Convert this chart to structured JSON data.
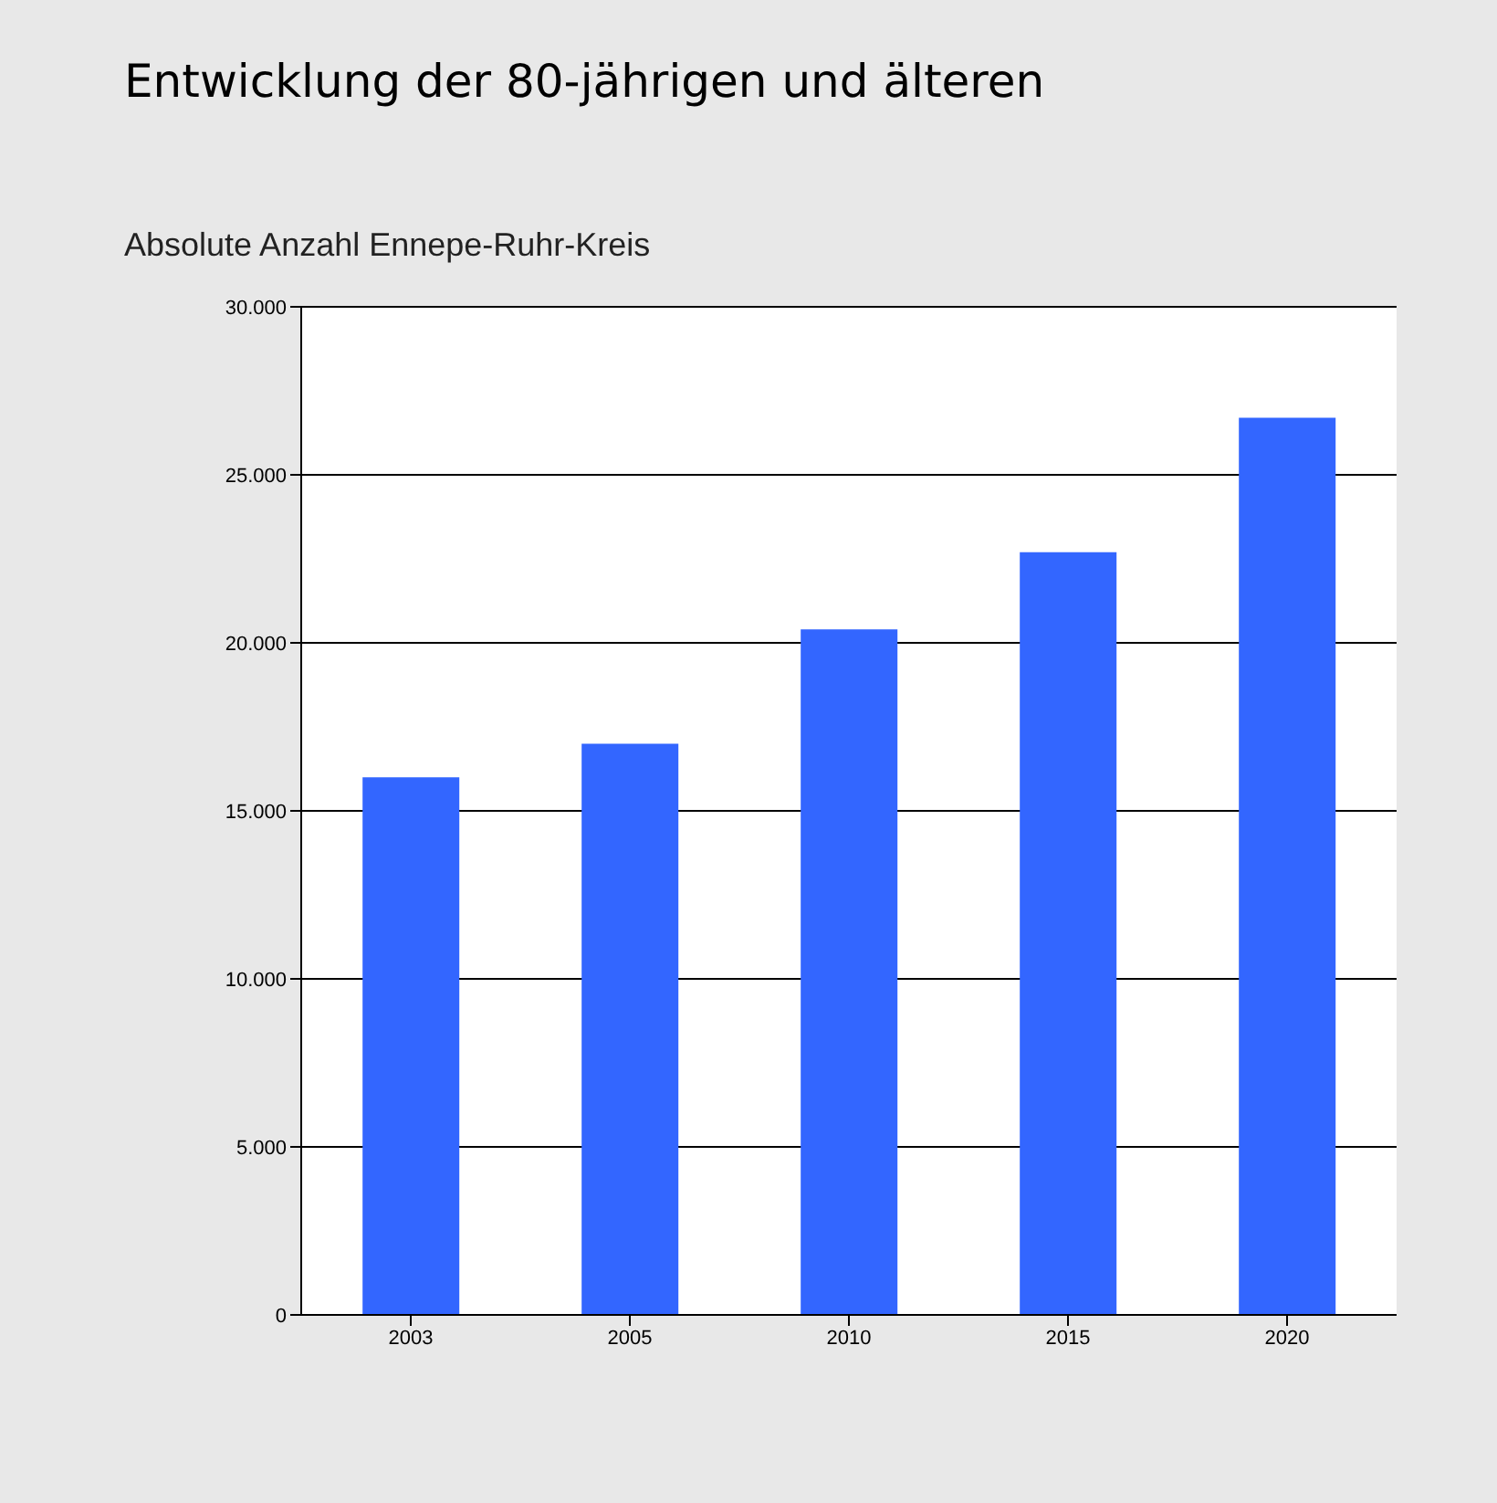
{
  "chart_data": {
    "type": "bar",
    "title": "Entwicklung der 80-jährigen und älteren",
    "subtitle": "Absolute Anzahl Ennepe-Ruhr-Kreis",
    "categories": [
      "2003",
      "2005",
      "2010",
      "2015",
      "2020"
    ],
    "values": [
      16000,
      17000,
      20400,
      22700,
      26700
    ],
    "color": "#3366ff",
    "ylim": [
      0,
      30000
    ],
    "yticks": [
      {
        "value": 0,
        "label": "0"
      },
      {
        "value": 5000,
        "label": "5.000"
      },
      {
        "value": 10000,
        "label": "10.000"
      },
      {
        "value": 15000,
        "label": "15.000"
      },
      {
        "value": 20000,
        "label": "20.000"
      },
      {
        "value": 25000,
        "label": "25.000"
      },
      {
        "value": 30000,
        "label": "30.000"
      }
    ],
    "grid": "y",
    "legend": false
  }
}
